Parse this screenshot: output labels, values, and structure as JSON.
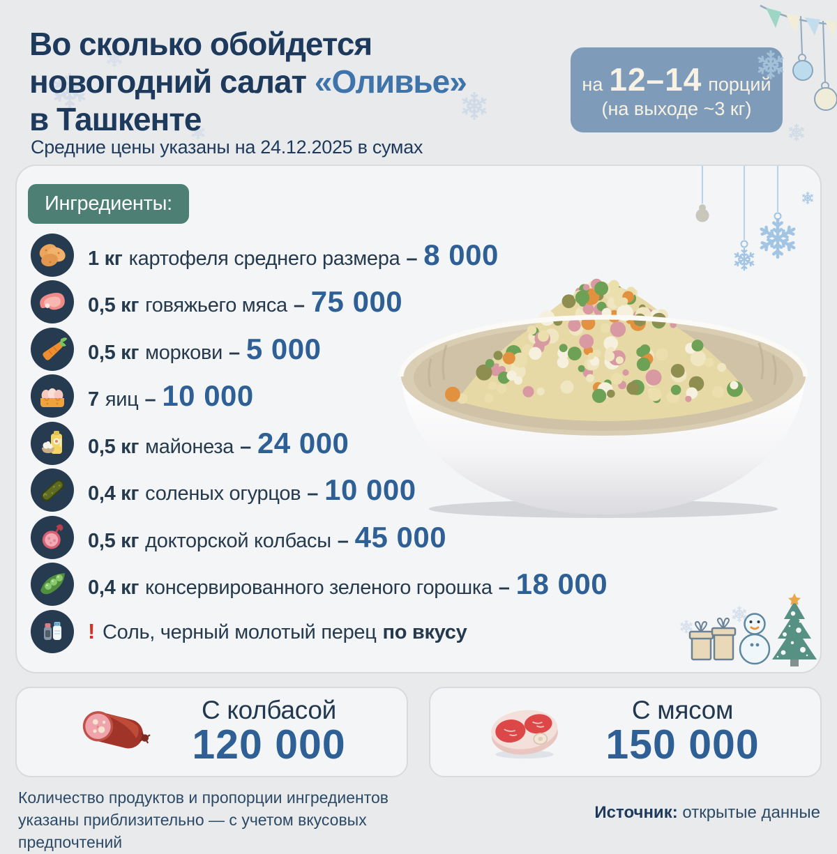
{
  "header": {
    "title_line1": "Во сколько обойдется",
    "title_line2_prefix": "новогодний салат ",
    "title_line2_highlight": "«Оливье»",
    "title_line3": "в Ташкенте",
    "subtitle": "Средние цены указаны на 24.12.2025 в сумах",
    "badge": {
      "prefix": "на",
      "servings": "12–14",
      "suffix": "порций",
      "line2": "(на выходе ~3 кг)"
    }
  },
  "ingredients": {
    "label": "Ингредиенты:",
    "separator": "–",
    "items": [
      {
        "icon": "potato-icon",
        "qty": "1 кг",
        "name": "картофеля среднего размера",
        "price": "8 000"
      },
      {
        "icon": "beef-icon",
        "qty": "0,5 кг",
        "name": "говяжьего мяса",
        "price": "75 000"
      },
      {
        "icon": "carrot-icon",
        "qty": "0,5 кг",
        "name": "моркови",
        "price": "5 000"
      },
      {
        "icon": "eggs-icon",
        "qty": "7",
        "name": "яиц",
        "price": "10 000"
      },
      {
        "icon": "mayonnaise-icon",
        "qty": "0,5 кг",
        "name": "майонеза",
        "price": "24 000"
      },
      {
        "icon": "pickle-icon",
        "qty": "0,4 кг",
        "name": "соленых огурцов",
        "price": "10 000"
      },
      {
        "icon": "sausage-icon",
        "qty": "0,5 кг",
        "name": "докторской колбасы",
        "price": "45 000"
      },
      {
        "icon": "peas-icon",
        "qty": "0,4 кг",
        "name": "консервированного зеленого горошка",
        "price": "18 000"
      }
    ],
    "note": {
      "icon": "salt-pepper-icon",
      "mark": "!",
      "text": "Соль, черный молотый перец",
      "emphasis": "по вкусу"
    }
  },
  "salad_image": "olivier-salad-bowl-photo",
  "totals": [
    {
      "icon": "sausage-illustration",
      "label": "С колбасой",
      "price": "120 000"
    },
    {
      "icon": "meat-illustration",
      "label": "С мясом",
      "price": "150 000"
    }
  ],
  "footer": {
    "note": "Количество продуктов и пропорции ингредиентов указаны приблизительно — с учетом вкусовых предпочтений",
    "source_label": "Источник:",
    "source_value": "открытые данные"
  },
  "colors": {
    "title": "#1d3a5c",
    "title_highlight": "#3f74ab",
    "price": "#2e6095",
    "servings_badge_bg": "#7e9cba",
    "servings_badge_text": "#f7f2e3",
    "ingredients_badge_bg": "#4d7f74",
    "panel_bg": "#f4f5f7",
    "page_bg": "#e9eaec",
    "alert": "#d93025"
  }
}
